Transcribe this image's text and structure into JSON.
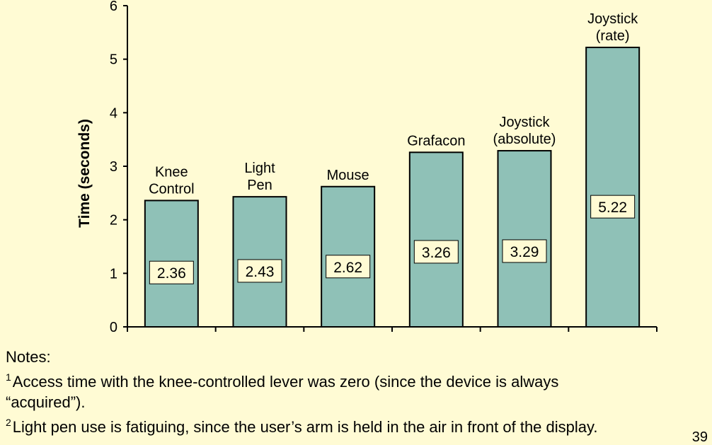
{
  "chart_data": {
    "type": "bar",
    "categories": [
      "Knee Control",
      "Light Pen",
      "Mouse",
      "Grafacon",
      "Joystick (absolute)",
      "Joystick (rate)"
    ],
    "category_label_lines": [
      [
        "Knee",
        "Control"
      ],
      [
        "Light",
        "Pen"
      ],
      [
        "Mouse"
      ],
      [
        "Grafacon"
      ],
      [
        "Joystick",
        "(absolute)"
      ],
      [
        "Joystick",
        "(rate)"
      ]
    ],
    "values": [
      2.36,
      2.43,
      2.62,
      3.26,
      3.29,
      5.22
    ],
    "data_labels": [
      "2.36",
      "2.43",
      "2.62",
      "3.26",
      "3.29",
      "5.22"
    ],
    "ylabel": "Time (seconds)",
    "ylim": [
      0,
      6
    ],
    "yticks": [
      "0",
      "1",
      "2",
      "3",
      "4",
      "5",
      "6"
    ],
    "grid": false,
    "bar_color": "#8fc1b7"
  },
  "notes": {
    "heading": "Notes:",
    "items": [
      {
        "marker": "1",
        "lines": [
          "Access time with the knee-controlled lever was zero (since the device is always",
          "“acquired”)."
        ]
      },
      {
        "marker": "2",
        "lines": [
          "Light pen use is fatiguing, since the user’s arm is held in the air in front of the display."
        ]
      }
    ]
  },
  "page_number": "39",
  "colors": {
    "background": "#fffbd4",
    "bar": "#8fc1b7",
    "label_box": "#fffbd4"
  }
}
